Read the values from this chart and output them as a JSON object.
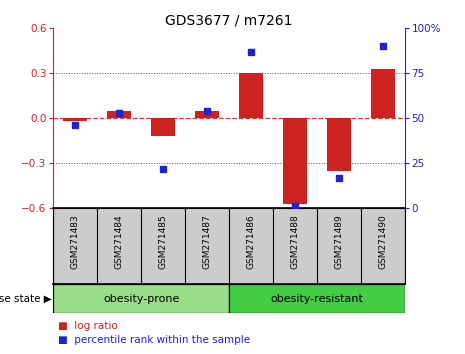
{
  "title": "GDS3677 / m7261",
  "samples": [
    "GSM271483",
    "GSM271484",
    "GSM271485",
    "GSM271487",
    "GSM271486",
    "GSM271488",
    "GSM271489",
    "GSM271490"
  ],
  "log_ratios": [
    -0.02,
    0.05,
    -0.12,
    0.05,
    0.3,
    -0.57,
    -0.35,
    0.33
  ],
  "percentile_ranks": [
    46,
    53,
    22,
    54,
    87,
    1,
    17,
    90
  ],
  "groups": [
    {
      "label": "obesity-prone",
      "indices": [
        0,
        1,
        2,
        3
      ],
      "color": "#99dd88"
    },
    {
      "label": "obesity-resistant",
      "indices": [
        4,
        5,
        6,
        7
      ],
      "color": "#44cc44"
    }
  ],
  "bar_color": "#cc2222",
  "dot_color": "#2222cc",
  "ylim": [
    -0.6,
    0.6
  ],
  "y2lim": [
    0,
    100
  ],
  "yticks": [
    -0.6,
    -0.3,
    0.0,
    0.3,
    0.6
  ],
  "y2ticks": [
    0,
    25,
    50,
    75,
    100
  ],
  "hline_color": "#dd3333",
  "grid_color": "#555555",
  "bg_color": "#ffffff",
  "sample_label_bg": "#cccccc",
  "legend_log_ratio": "log ratio",
  "legend_percentile": "percentile rank within the sample",
  "disease_state_label": "disease state",
  "title_fontsize": 10,
  "tick_fontsize": 7.5,
  "sample_fontsize": 6.5,
  "group_fontsize": 8,
  "legend_fontsize": 7.5
}
